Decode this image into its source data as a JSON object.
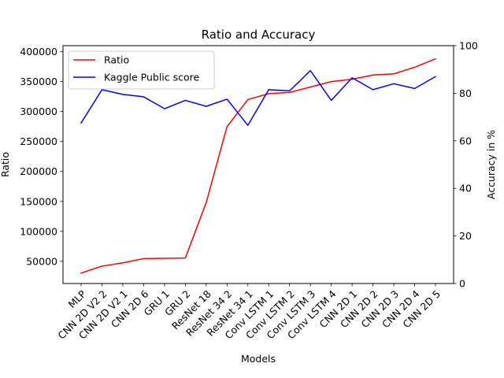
{
  "chart_data": {
    "type": "line",
    "title": "Ratio and Accuracy",
    "xlabel": "Models",
    "ylabel": "Ratio",
    "ylabel_right": "Accuracy in %",
    "categories": [
      "MLP",
      "CNN 2D V2 2",
      "CNN 2D V2 1",
      "CNN 2D 6",
      "GRU 1",
      "GRU 2",
      "ResNet 18",
      "ResNet 34 2",
      "ResNet 34 1",
      "Conv LSTM 1",
      "Conv LSTM 2",
      "Conv LSTM 3",
      "Conv LSTM 4",
      "CNN 2D 1",
      "CNN 2D 2",
      "CNN 2D 3",
      "CNN 2D 4",
      "CNN 2D 5"
    ],
    "ylim": [
      13000,
      410000
    ],
    "yticks": [
      50000,
      100000,
      150000,
      200000,
      250000,
      300000,
      350000,
      400000
    ],
    "ylim_right": [
      0,
      100
    ],
    "yticks_right": [
      0,
      20,
      40,
      60,
      80,
      100
    ],
    "grid": false,
    "legend_position": "top-left",
    "series": [
      {
        "name": "Ratio",
        "axis": "left",
        "color": "#ff0000",
        "values": [
          30500,
          42000,
          47500,
          54500,
          55000,
          55500,
          148000,
          275000,
          320000,
          330000,
          332000,
          341000,
          350000,
          354000,
          361000,
          363000,
          374000,
          388000
        ]
      },
      {
        "name": "Kaggle Public score",
        "axis": "right",
        "color": "#0000ff",
        "values": [
          67.5,
          81.5,
          79.5,
          78.5,
          73.5,
          77.0,
          74.5,
          77.5,
          66.5,
          81.5,
          81.0,
          89.5,
          77.0,
          86.5,
          81.5,
          84.0,
          82.0,
          87.0
        ]
      }
    ]
  }
}
